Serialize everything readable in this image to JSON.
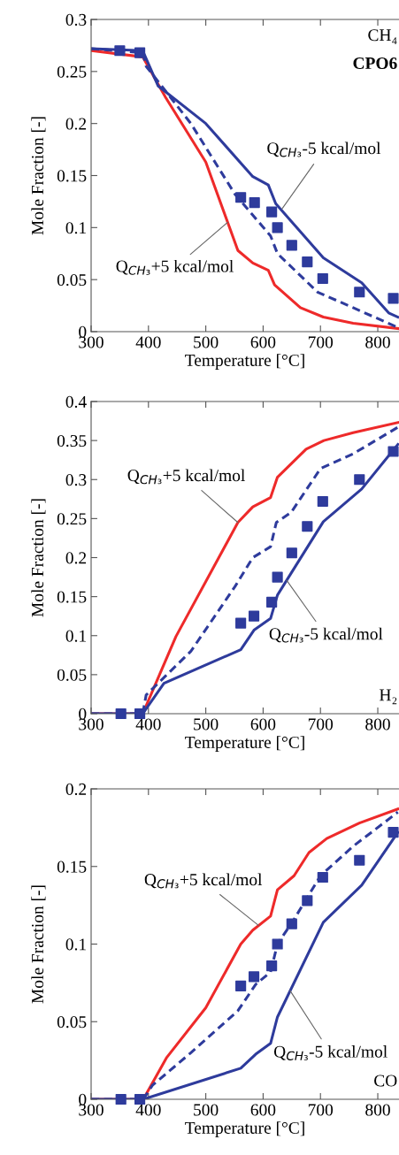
{
  "chart_data": [
    {
      "type": "line",
      "xlabel": "Temperature [°C]",
      "ylabel": "Mole Fraction [-]",
      "xlim": [
        300,
        837
      ],
      "xticks": [
        300,
        400,
        500,
        600,
        700,
        800
      ],
      "ylim": [
        0,
        0.3
      ],
      "yticks": [
        0,
        0.05,
        0.1,
        0.15,
        0.2,
        0.25,
        0.3
      ],
      "grid": false,
      "legend": false,
      "series": [
        {
          "color": "#ee2a2a",
          "line_style": "solid",
          "x": [
            300,
            390,
            430,
            500,
            556,
            582,
            609,
            620,
            665,
            705,
            757,
            835
          ],
          "values": [
            0.27,
            0.264,
            0.225,
            0.163,
            0.078,
            0.066,
            0.059,
            0.045,
            0.023,
            0.014,
            0.008,
            0.003
          ]
        },
        {
          "color": "#2e3b9c",
          "line_style": "dashed",
          "x": [
            300,
            390,
            396,
            474,
            551,
            613,
            625,
            695,
            757,
            835
          ],
          "values": [
            0.272,
            0.268,
            0.255,
            0.2,
            0.132,
            0.092,
            0.075,
            0.038,
            0.023,
            0.004
          ]
        },
        {
          "color": "#2e3b9c",
          "line_style": "solid",
          "x": [
            300,
            390,
            417,
            500,
            582,
            609,
            622,
            705,
            772,
            819,
            835
          ],
          "values": [
            0.272,
            0.27,
            0.236,
            0.2,
            0.149,
            0.141,
            0.123,
            0.071,
            0.047,
            0.018,
            0.014
          ]
        },
        {
          "type": "scatter",
          "color": "#2e3b9c",
          "marker": "square",
          "x": [
            350,
            385,
            561,
            585,
            615,
            625,
            650,
            677,
            704,
            768,
            827
          ],
          "values": [
            0.27,
            0.268,
            0.129,
            0.124,
            0.115,
            0.1,
            0.083,
            0.067,
            0.051,
            0.038,
            0.032
          ]
        }
      ],
      "annotations": [
        "CH₄",
        "CPO6",
        {
          "text": "Q$_{CH₃}$-5 kcal/mol",
          "x": 633,
          "y": 0.118
        },
        {
          "text": "Q$_{CH₃}$+5 kcal/mol",
          "x": 538,
          "y": 0.105
        }
      ]
    },
    {
      "type": "line",
      "xlabel": "Temperature [°C]",
      "ylabel": "Mole Fraction [-]",
      "xlim": [
        300,
        837
      ],
      "xticks": [
        300,
        400,
        500,
        600,
        700,
        800
      ],
      "ylim": [
        0,
        0.4
      ],
      "yticks": [
        0,
        0.05,
        0.1,
        0.15,
        0.2,
        0.25,
        0.3,
        0.35,
        0.4
      ],
      "grid": false,
      "legend": false,
      "series": [
        {
          "color": "#ee2a2a",
          "line_style": "solid",
          "x": [
            300,
            390,
            448,
            556,
            582,
            613,
            625,
            675,
            706,
            757,
            835
          ],
          "values": [
            0,
            0,
            0.099,
            0.245,
            0.265,
            0.277,
            0.303,
            0.339,
            0.35,
            0.36,
            0.373
          ]
        },
        {
          "color": "#2e3b9c",
          "line_style": "dashed",
          "x": [
            300,
            390,
            396,
            474,
            551,
            582,
            613,
            623,
            649,
            700,
            757,
            835
          ],
          "values": [
            0,
            0,
            0.024,
            0.08,
            0.163,
            0.2,
            0.214,
            0.245,
            0.258,
            0.314,
            0.333,
            0.367
          ]
        },
        {
          "color": "#2e3b9c",
          "line_style": "solid",
          "x": [
            300,
            390,
            427,
            561,
            584,
            613,
            625,
            705,
            772,
            835
          ],
          "values": [
            0,
            0,
            0.039,
            0.082,
            0.107,
            0.122,
            0.152,
            0.246,
            0.288,
            0.345
          ]
        },
        {
          "type": "scatter",
          "color": "#2e3b9c",
          "marker": "square",
          "x": [
            352,
            385,
            561,
            584,
            615,
            625,
            650,
            677,
            704,
            768,
            827
          ],
          "values": [
            0,
            0,
            0.116,
            0.125,
            0.143,
            0.175,
            0.206,
            0.24,
            0.272,
            0.3,
            0.336
          ]
        }
      ],
      "annotations": [
        "H₂",
        {
          "text": "Q$_{CH₃}$+5 kcal/mol",
          "x": 556,
          "y": 0.245
        },
        {
          "text": "Q$_{CH₃}$-5 kcal/mol",
          "x": 641,
          "y": 0.171
        }
      ]
    },
    {
      "type": "line",
      "xlabel": "Temperature [°C]",
      "ylabel": "Mole Fraction [-]",
      "xlim": [
        300,
        837
      ],
      "xticks": [
        300,
        400,
        500,
        600,
        700,
        800
      ],
      "ylim": [
        0,
        0.2
      ],
      "yticks": [
        0,
        0.05,
        0.1,
        0.15,
        0.2
      ],
      "grid": false,
      "legend": false,
      "series": [
        {
          "color": "#ee2a2a",
          "line_style": "solid",
          "x": [
            300,
            391,
            432,
            500,
            561,
            582,
            613,
            625,
            654,
            680,
            711,
            768,
            835
          ],
          "values": [
            0,
            0,
            0.027,
            0.059,
            0.1,
            0.109,
            0.118,
            0.135,
            0.144,
            0.159,
            0.168,
            0.178,
            0.187
          ]
        },
        {
          "color": "#2e3b9c",
          "line_style": "dashed",
          "x": [
            300,
            391,
            407,
            474,
            556,
            587,
            613,
            625,
            654,
            700,
            757,
            835
          ],
          "values": [
            0,
            0,
            0.009,
            0.03,
            0.057,
            0.074,
            0.082,
            0.1,
            0.116,
            0.144,
            0.163,
            0.185
          ]
        },
        {
          "color": "#2e3b9c",
          "line_style": "solid",
          "x": [
            300,
            391,
            561,
            587,
            613,
            625,
            705,
            772,
            835
          ],
          "values": [
            0,
            0,
            0.02,
            0.029,
            0.036,
            0.053,
            0.114,
            0.138,
            0.172
          ]
        },
        {
          "type": "scatter",
          "color": "#2e3b9c",
          "marker": "square",
          "x": [
            352,
            385,
            561,
            584,
            615,
            625,
            650,
            677,
            704,
            768,
            827
          ],
          "values": [
            0,
            0,
            0.073,
            0.079,
            0.086,
            0.1,
            0.113,
            0.128,
            0.143,
            0.154,
            0.172
          ]
        }
      ],
      "annotations": [
        "CO",
        {
          "text": "Q$_{CH₃}$+5 kcal/mol",
          "x": 592,
          "y": 0.112
        },
        {
          "text": "Q$_{CH₃}$-5 kcal/mol",
          "x": 647,
          "y": 0.07
        }
      ]
    }
  ]
}
